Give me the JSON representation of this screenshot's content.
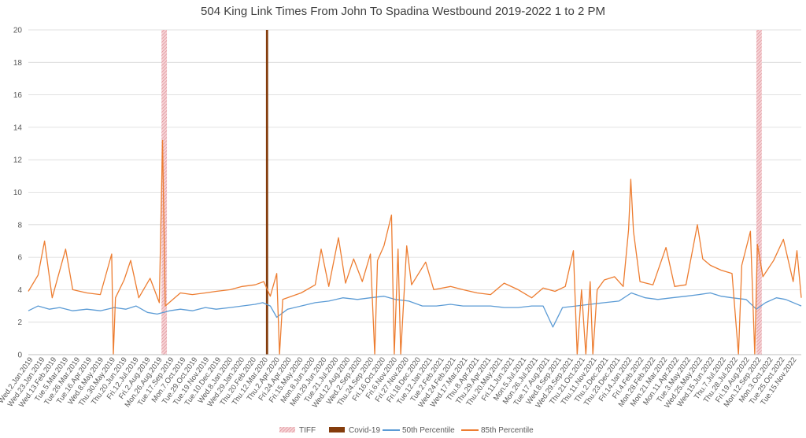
{
  "chart_data": {
    "type": "line",
    "title": "504 King Link Times From John To Spadina Westbound 2019-2022 1 to 2 PM",
    "ylim": [
      0,
      20
    ],
    "yticks": [
      0,
      2,
      4,
      6,
      8,
      10,
      12,
      14,
      16,
      18,
      20
    ],
    "grid": true,
    "legend_position": "bottom",
    "x_start_date": "2019-01-02",
    "x_end_date": "2022-11-30",
    "x_tick_labels": [
      "Wed.2.Jan.2019",
      "Wed.23.Jan.2019",
      "Wed.13.Feb.2019",
      "Tue.5.Mar.2019",
      "Tue.26.Mar.2019",
      "Tue.16.Apr.2019",
      "Wed.8.May.2019",
      "Thu.30.May.2019",
      "Thu.20.Jun.2019",
      "Fri.12.Jul.2019",
      "Fri.2.Aug.2019",
      "Mon.26.Aug.2019",
      "Tue.17.Sep.2019",
      "Mon.7.Oct.2019",
      "Tue.29.Oct.2019",
      "Tue.19.Nov.2019",
      "Tue.10.Dec.2019",
      "Wed.8.Jan.2020",
      "Wed.29.Jan.2020",
      "Thu.20.Feb.2020",
      "Thu.12.Mar.2020",
      "Thu.2.Apr.2020",
      "Fri.24.Apr.2020",
      "Fri.15.May.2020",
      "Mon.8.Jun.2020",
      "Mon.29.Jun.2020",
      "Tue.21.Jul.2020",
      "Wed.12.Aug.2020",
      "Wed.2.Sep.2020",
      "Thu.24.Sep.2020",
      "Fri.16.Oct.2020",
      "Fri.6.Nov.2020",
      "Fri.27.Nov.2020",
      "Fri.18.Dec.2020",
      "Tue.12.Jan.2021",
      "Tue.2.Feb.2021",
      "Wed.24.Feb.2021",
      "Wed.17.Mar.2021",
      "Thu.8.Apr.2021",
      "Thu.29.Apr.2021",
      "Thu.20.May.2021",
      "Fri.11.Jun.2021",
      "Mon.5.Jul.2021",
      "Mon.26.Jul.2021",
      "Tue.17.Aug.2021",
      "Wed.8.Sep.2021",
      "Wed.29.Sep.2021",
      "Thu.21.Oct.2021",
      "Thu.11.Nov.2021",
      "Thu.2.Dec.2021",
      "Thu.23.Dec.2021",
      "Fri.14.Jan.2022",
      "Fri.4.Feb.2022",
      "Mon.28.Feb.2022",
      "Mon.21.Mar.2022",
      "Mon.11.Apr.2022",
      "Tue.3.May.2022",
      "Wed.25.May.2022",
      "Wed.15.Jun.2022",
      "Thu.7.Jul.2022",
      "Thu.28.Jul.2022",
      "Fri.19.Aug.2022",
      "Mon.12.Sep.2022",
      "Mon.3.Oct.2022",
      "Tue.25.Oct.2022",
      "Tue.15.Nov.2022"
    ],
    "series": [
      {
        "name": "50th Percentile",
        "color": "#5b9bd5",
        "points": [
          [
            "2019-01-02",
            2.7
          ],
          [
            "2019-01-20",
            3.0
          ],
          [
            "2019-02-10",
            2.8
          ],
          [
            "2019-03-01",
            2.9
          ],
          [
            "2019-03-25",
            2.7
          ],
          [
            "2019-04-20",
            2.8
          ],
          [
            "2019-05-15",
            2.7
          ],
          [
            "2019-06-10",
            2.9
          ],
          [
            "2019-07-01",
            2.8
          ],
          [
            "2019-07-20",
            3.0
          ],
          [
            "2019-08-10",
            2.6
          ],
          [
            "2019-08-28",
            2.5
          ],
          [
            "2019-09-20",
            2.7
          ],
          [
            "2019-10-10",
            2.8
          ],
          [
            "2019-11-01",
            2.7
          ],
          [
            "2019-11-25",
            2.9
          ],
          [
            "2019-12-15",
            2.8
          ],
          [
            "2020-01-10",
            2.9
          ],
          [
            "2020-02-01",
            3.0
          ],
          [
            "2020-02-25",
            3.1
          ],
          [
            "2020-03-10",
            3.2
          ],
          [
            "2020-03-24",
            3.0
          ],
          [
            "2020-04-05",
            2.3
          ],
          [
            "2020-04-25",
            2.8
          ],
          [
            "2020-05-20",
            3.0
          ],
          [
            "2020-06-15",
            3.2
          ],
          [
            "2020-07-10",
            3.3
          ],
          [
            "2020-08-05",
            3.5
          ],
          [
            "2020-09-01",
            3.4
          ],
          [
            "2020-09-25",
            3.5
          ],
          [
            "2020-10-20",
            3.6
          ],
          [
            "2020-11-10",
            3.4
          ],
          [
            "2020-12-05",
            3.3
          ],
          [
            "2020-12-30",
            3.0
          ],
          [
            "2021-01-25",
            3.0
          ],
          [
            "2021-02-20",
            3.1
          ],
          [
            "2021-03-15",
            3.0
          ],
          [
            "2021-04-10",
            3.0
          ],
          [
            "2021-05-05",
            3.0
          ],
          [
            "2021-05-30",
            2.9
          ],
          [
            "2021-06-25",
            2.9
          ],
          [
            "2021-07-20",
            3.0
          ],
          [
            "2021-08-10",
            3.0
          ],
          [
            "2021-08-28",
            1.7
          ],
          [
            "2021-09-15",
            2.9
          ],
          [
            "2021-10-10",
            3.0
          ],
          [
            "2021-11-05",
            3.1
          ],
          [
            "2021-12-01",
            3.2
          ],
          [
            "2021-12-28",
            3.3
          ],
          [
            "2022-01-20",
            3.8
          ],
          [
            "2022-02-15",
            3.5
          ],
          [
            "2022-03-10",
            3.4
          ],
          [
            "2022-04-05",
            3.5
          ],
          [
            "2022-05-01",
            3.6
          ],
          [
            "2022-05-25",
            3.7
          ],
          [
            "2022-06-15",
            3.8
          ],
          [
            "2022-07-05",
            3.6
          ],
          [
            "2022-07-25",
            3.5
          ],
          [
            "2022-08-20",
            3.4
          ],
          [
            "2022-09-08",
            2.8
          ],
          [
            "2022-09-25",
            3.2
          ],
          [
            "2022-10-15",
            3.5
          ],
          [
            "2022-11-01",
            3.4
          ],
          [
            "2022-11-30",
            3.0
          ]
        ]
      },
      {
        "name": "85th Percentile",
        "color": "#ed7d31",
        "points": [
          [
            "2019-01-02",
            3.9
          ],
          [
            "2019-01-20",
            4.9
          ],
          [
            "2019-02-01",
            7.0
          ],
          [
            "2019-02-15",
            3.5
          ],
          [
            "2019-03-12",
            6.5
          ],
          [
            "2019-03-25",
            4.0
          ],
          [
            "2019-04-20",
            3.8
          ],
          [
            "2019-05-15",
            3.7
          ],
          [
            "2019-06-05",
            6.2
          ],
          [
            "2019-06-08",
            0.0
          ],
          [
            "2019-06-12",
            3.5
          ],
          [
            "2019-06-28",
            4.6
          ],
          [
            "2019-07-10",
            5.8
          ],
          [
            "2019-07-25",
            3.5
          ],
          [
            "2019-08-15",
            4.7
          ],
          [
            "2019-09-01",
            3.2
          ],
          [
            "2019-09-07",
            13.2
          ],
          [
            "2019-09-12",
            3.0
          ],
          [
            "2019-10-10",
            3.8
          ],
          [
            "2019-11-01",
            3.7
          ],
          [
            "2019-11-25",
            3.8
          ],
          [
            "2019-12-15",
            3.9
          ],
          [
            "2020-01-10",
            4.0
          ],
          [
            "2020-02-01",
            4.2
          ],
          [
            "2020-02-25",
            4.3
          ],
          [
            "2020-03-12",
            4.5
          ],
          [
            "2020-03-24",
            3.6
          ],
          [
            "2020-04-05",
            5.0
          ],
          [
            "2020-04-10",
            0.0
          ],
          [
            "2020-04-16",
            3.4
          ],
          [
            "2020-05-20",
            3.8
          ],
          [
            "2020-06-15",
            4.3
          ],
          [
            "2020-06-26",
            6.5
          ],
          [
            "2020-07-10",
            4.2
          ],
          [
            "2020-07-28",
            7.2
          ],
          [
            "2020-08-10",
            4.4
          ],
          [
            "2020-08-25",
            5.9
          ],
          [
            "2020-09-10",
            4.5
          ],
          [
            "2020-09-25",
            6.2
          ],
          [
            "2020-10-03",
            0.0
          ],
          [
            "2020-10-08",
            5.8
          ],
          [
            "2020-10-20",
            6.7
          ],
          [
            "2020-11-03",
            8.6
          ],
          [
            "2020-11-08",
            0.0
          ],
          [
            "2020-11-15",
            6.5
          ],
          [
            "2020-11-20",
            0.0
          ],
          [
            "2020-12-01",
            6.7
          ],
          [
            "2020-12-10",
            4.3
          ],
          [
            "2021-01-05",
            5.7
          ],
          [
            "2021-01-20",
            4.0
          ],
          [
            "2021-02-20",
            4.2
          ],
          [
            "2021-03-15",
            4.0
          ],
          [
            "2021-04-10",
            3.8
          ],
          [
            "2021-05-05",
            3.7
          ],
          [
            "2021-05-30",
            4.4
          ],
          [
            "2021-06-25",
            4.0
          ],
          [
            "2021-07-20",
            3.5
          ],
          [
            "2021-08-10",
            4.1
          ],
          [
            "2021-09-01",
            3.9
          ],
          [
            "2021-09-20",
            4.2
          ],
          [
            "2021-10-05",
            6.4
          ],
          [
            "2021-10-12",
            0.0
          ],
          [
            "2021-10-20",
            4.0
          ],
          [
            "2021-10-28",
            0.0
          ],
          [
            "2021-11-05",
            4.5
          ],
          [
            "2021-11-10",
            0.0
          ],
          [
            "2021-11-18",
            4.0
          ],
          [
            "2021-12-01",
            4.6
          ],
          [
            "2021-12-20",
            4.8
          ],
          [
            "2022-01-05",
            4.2
          ],
          [
            "2022-01-15",
            7.7
          ],
          [
            "2022-01-19",
            10.8
          ],
          [
            "2022-01-24",
            7.6
          ],
          [
            "2022-02-05",
            4.5
          ],
          [
            "2022-03-01",
            4.3
          ],
          [
            "2022-03-25",
            6.6
          ],
          [
            "2022-04-10",
            4.2
          ],
          [
            "2022-05-01",
            4.3
          ],
          [
            "2022-05-22",
            8.0
          ],
          [
            "2022-06-01",
            5.9
          ],
          [
            "2022-06-15",
            5.5
          ],
          [
            "2022-07-05",
            5.2
          ],
          [
            "2022-07-25",
            5.0
          ],
          [
            "2022-08-06",
            0.0
          ],
          [
            "2022-08-12",
            5.5
          ],
          [
            "2022-08-28",
            7.6
          ],
          [
            "2022-09-05",
            0.0
          ],
          [
            "2022-09-10",
            6.8
          ],
          [
            "2022-09-20",
            4.8
          ],
          [
            "2022-10-10",
            5.8
          ],
          [
            "2022-10-28",
            7.1
          ],
          [
            "2022-11-15",
            4.5
          ],
          [
            "2022-11-22",
            6.4
          ],
          [
            "2022-11-30",
            3.5
          ]
        ]
      }
    ],
    "bands": [
      {
        "name": "TIFF",
        "color": "#e8a0a6",
        "pattern": "hatch",
        "ranges": [
          [
            "2019-09-05",
            "2019-09-15"
          ],
          [
            "2022-09-08",
            "2022-09-18"
          ]
        ],
        "value": 20
      },
      {
        "name": "Covid-19",
        "color": "#843c0c",
        "pattern": "solid",
        "ranges": [
          [
            "2020-03-16",
            "2020-03-20"
          ]
        ],
        "value": 20
      }
    ],
    "legend": [
      "TIFF",
      "Covid-19",
      "50th Percentile",
      "85th Percentile"
    ]
  }
}
